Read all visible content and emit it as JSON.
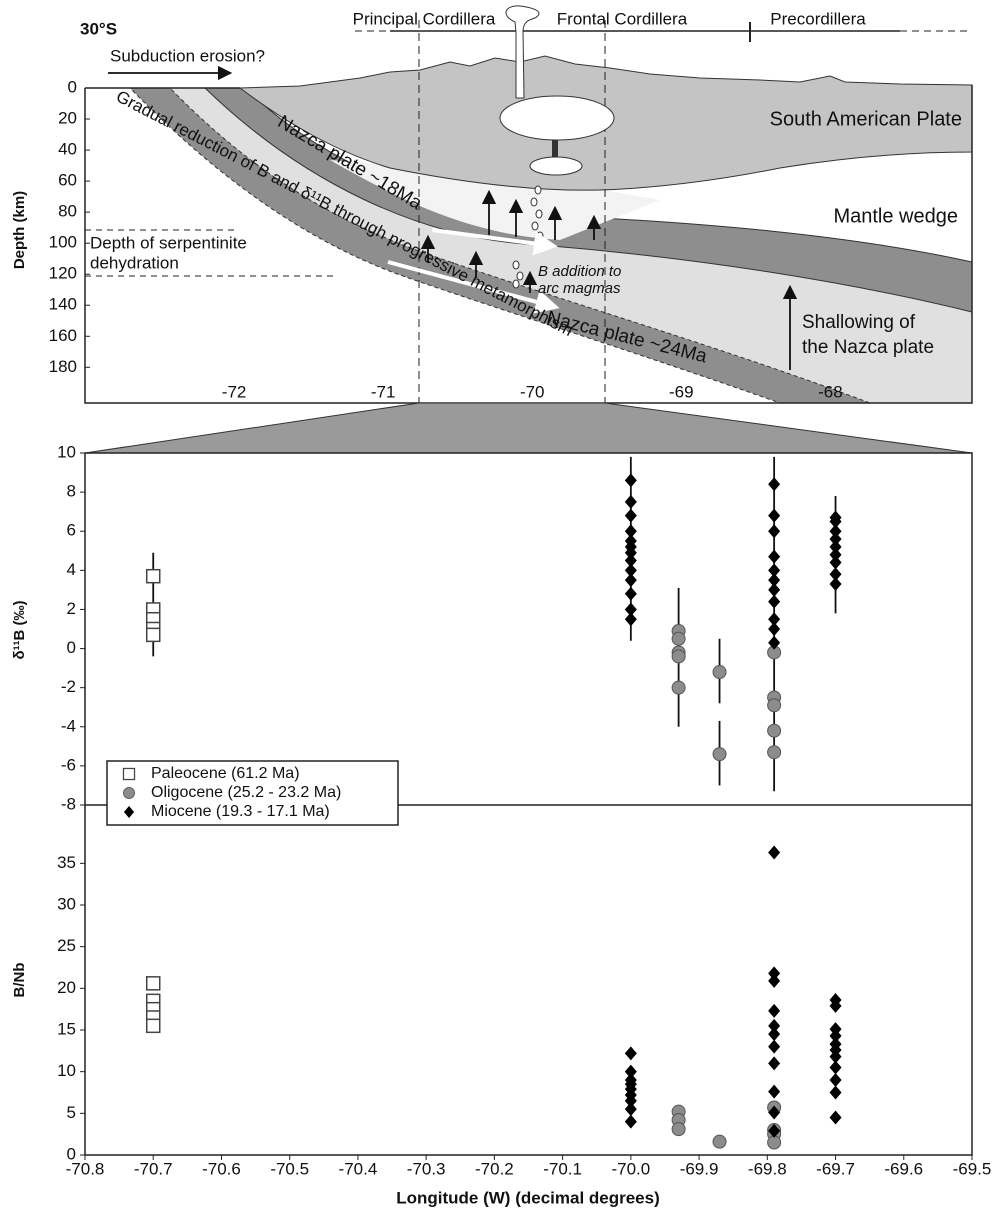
{
  "chart_data": [
    {
      "type": "cross-section",
      "latitude": "30°S",
      "regions": [
        "Principal Cordillera",
        "Frontal Cordillera",
        "Precordillera"
      ],
      "ylabel": "Depth (km)",
      "ylim": [
        0,
        203
      ],
      "yticks": [
        0,
        20,
        40,
        60,
        80,
        100,
        120,
        140,
        160,
        180
      ],
      "xlim": [
        -73,
        -67.05
      ],
      "xticks": [
        -72,
        -71,
        -70,
        -69,
        -68
      ],
      "annotations": {
        "erosion": "Subduction erosion?",
        "upper_plate": "South American Plate",
        "wedge": "Mantle wedge",
        "young_slab": "Nazca plate ~18Ma",
        "old_slab": "Nazca plate ~24Ma",
        "serpentinite": [
          "Depth of serpentinite",
          "dehydration"
        ],
        "reduction": "Gradual reduction of B and δ¹¹B through progressive metamorphism",
        "addition": [
          "B addition to",
          "arc magmas"
        ],
        "shallowing": [
          "Shallowing of",
          "the Nazca plate"
        ]
      }
    },
    {
      "type": "scatter",
      "ylabel": "δ¹¹B (‰)",
      "xlim": [
        -70.8,
        -69.5
      ],
      "ylim": [
        -8,
        10
      ],
      "yticks": [
        -8,
        -6,
        -4,
        -2,
        0,
        2,
        4,
        6,
        8,
        10
      ],
      "legend": "lower left",
      "series": [
        {
          "name": "Paleocene (61.2 Ma)",
          "marker": "square",
          "color": "#ffffff",
          "x": [
            -70.7,
            -70.7,
            -70.7,
            -70.7,
            -70.7
          ],
          "values": [
            3.7,
            2.0,
            1.5,
            1.0,
            0.7
          ]
        },
        {
          "name": "Oligocene (25.2 - 23.2 Ma)",
          "marker": "circle",
          "color": "#8c8c8c",
          "x": [
            -69.93,
            -69.93,
            -69.93,
            -69.93,
            -69.93,
            -69.87,
            -69.87,
            -69.79,
            -69.79,
            -69.79,
            -69.79,
            -69.79
          ],
          "values": [
            0.9,
            0.5,
            -0.2,
            -0.4,
            -2.0,
            -1.2,
            -5.4,
            -0.2,
            -2.5,
            -2.9,
            -4.2,
            -5.3
          ]
        },
        {
          "name": "Miocene (19.3 - 17.1 Ma)",
          "marker": "diamond",
          "color": "#000000",
          "x": [
            -70.0,
            -70.0,
            -70.0,
            -70.0,
            -70.0,
            -70.0,
            -70.0,
            -70.0,
            -70.0,
            -70.0,
            -70.0,
            -70.0,
            -70.0,
            -69.79,
            -69.79,
            -69.79,
            -69.79,
            -69.79,
            -69.79,
            -69.79,
            -69.79,
            -69.79,
            -69.79,
            -69.79,
            -69.7,
            -69.7,
            -69.7,
            -69.7,
            -69.7,
            -69.7,
            -69.7,
            -69.7,
            -69.7
          ],
          "values": [
            8.6,
            7.5,
            6.8,
            6.0,
            5.5,
            5.2,
            4.9,
            4.5,
            4.0,
            3.5,
            2.8,
            2.0,
            1.5,
            8.4,
            6.8,
            6.0,
            4.7,
            4.0,
            3.5,
            3.0,
            2.4,
            1.5,
            1.0,
            0.3,
            6.7,
            6.5,
            6.0,
            5.6,
            5.2,
            4.8,
            4.4,
            3.8,
            3.3
          ]
        }
      ],
      "error_bars": [
        {
          "x": -70.7,
          "low": -0.4,
          "high": 4.9
        },
        {
          "x": -70.0,
          "low": 0.4,
          "high": 9.8
        },
        {
          "x": -69.93,
          "low": -4.0,
          "high": 3.1
        },
        {
          "x": -69.87,
          "low": -2.8,
          "high": 0.5
        },
        {
          "x": -69.87,
          "low": -7.0,
          "high": -3.7
        },
        {
          "x": -69.79,
          "low": -7.3,
          "high": 9.8
        },
        {
          "x": -69.7,
          "low": 1.8,
          "high": 7.8
        }
      ]
    },
    {
      "type": "scatter",
      "ylabel": "B/Nb",
      "xlabel": "Longitude (W) (decimal degrees)",
      "xlim": [
        -70.8,
        -69.5
      ],
      "xticks": [
        -70.8,
        -70.7,
        -70.6,
        -70.5,
        -70.4,
        -70.3,
        -70.2,
        -70.1,
        {
          "value": -70,
          "label": "-70.0"
        },
        -69.9,
        -69.8,
        -69.7,
        -69.6,
        -69.5
      ],
      "ylim": [
        0,
        42
      ],
      "yticks": [
        0,
        5,
        10,
        15,
        20,
        25,
        30,
        35
      ],
      "series": [
        {
          "marker": "square",
          "color": "#ffffff",
          "x": [
            -70.7,
            -70.7,
            -70.7,
            -70.7,
            -70.7
          ],
          "values": [
            20.6,
            18.5,
            17.5,
            16.5,
            15.5
          ]
        },
        {
          "marker": "circle",
          "color": "#8c8c8c",
          "x": [
            -69.93,
            -69.93,
            -69.93,
            -69.87,
            -69.79,
            -69.79,
            -69.79,
            -69.79
          ],
          "values": [
            5.2,
            4.2,
            3.1,
            1.6,
            5.7,
            3.0,
            2.5,
            1.5
          ]
        },
        {
          "marker": "diamond",
          "color": "#000000",
          "x": [
            -70.0,
            -70.0,
            -70.0,
            -70.0,
            -70.0,
            -70.0,
            -70.0,
            -70.0,
            -70.0,
            -69.79,
            -69.79,
            -69.79,
            -69.79,
            -69.79,
            -69.79,
            -69.79,
            -69.79,
            -69.79,
            -69.79,
            -69.79,
            -69.7,
            -69.7,
            -69.7,
            -69.7,
            -69.7,
            -69.7,
            -69.7,
            -69.7,
            -69.7,
            -69.7,
            -69.7
          ],
          "values": [
            12.2,
            10.0,
            9.0,
            8.5,
            7.9,
            7.2,
            6.5,
            5.5,
            4.0,
            36.3,
            21.8,
            20.9,
            17.3,
            15.5,
            14.5,
            13.0,
            11.0,
            7.6,
            5.1,
            2.9,
            18.6,
            17.9,
            15.1,
            14.3,
            13.3,
            12.6,
            11.8,
            10.5,
            9.0,
            7.5,
            4.5
          ]
        }
      ]
    }
  ]
}
